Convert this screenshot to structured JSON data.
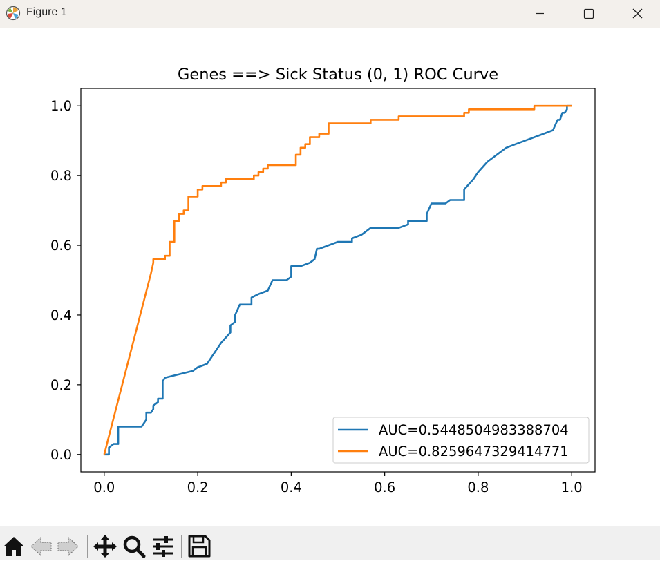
{
  "window": {
    "title": "Figure 1",
    "controls": [
      "minimize-icon",
      "maximize-icon",
      "close-icon"
    ]
  },
  "toolbar": {
    "buttons": [
      "home-icon",
      "back-arrow-icon",
      "forward-arrow-icon",
      "pan-icon",
      "zoom-icon",
      "configure-subplots-icon",
      "save-icon"
    ]
  },
  "chart_data": {
    "type": "line",
    "title": "Genes ==> Sick Status (0, 1) ROC Curve",
    "xlabel": "",
    "ylabel": "",
    "xlim": [
      -0.05,
      1.05
    ],
    "ylim": [
      -0.05,
      1.05
    ],
    "xticks": [
      "0.0",
      "0.2",
      "0.4",
      "0.6",
      "0.8",
      "1.0"
    ],
    "yticks": [
      "0.0",
      "0.2",
      "0.4",
      "0.6",
      "0.8",
      "1.0"
    ],
    "grid": false,
    "legend_position": "lower right",
    "series": [
      {
        "name": "AUC=0.5448504983388704",
        "color": "#1f77b4",
        "x": [
          0.0,
          0.01,
          0.01,
          0.02,
          0.03,
          0.03,
          0.08,
          0.09,
          0.09,
          0.1,
          0.105,
          0.105,
          0.115,
          0.115,
          0.125,
          0.125,
          0.13,
          0.13,
          0.16,
          0.19,
          0.2,
          0.22,
          0.25,
          0.27,
          0.27,
          0.28,
          0.28,
          0.29,
          0.315,
          0.315,
          0.33,
          0.35,
          0.36,
          0.39,
          0.4,
          0.4,
          0.42,
          0.44,
          0.45,
          0.455,
          0.46,
          0.48,
          0.5,
          0.53,
          0.53,
          0.55,
          0.56,
          0.57,
          0.63,
          0.65,
          0.65,
          0.69,
          0.69,
          0.7,
          0.73,
          0.74,
          0.77,
          0.77,
          0.79,
          0.8,
          0.82,
          0.86,
          0.88,
          0.9,
          0.94,
          0.96,
          0.97,
          0.975,
          0.98,
          0.985,
          0.99,
          0.99,
          1.0
        ],
        "y": [
          0.0,
          0.0,
          0.02,
          0.03,
          0.03,
          0.08,
          0.08,
          0.1,
          0.12,
          0.12,
          0.13,
          0.14,
          0.15,
          0.16,
          0.16,
          0.21,
          0.22,
          0.22,
          0.23,
          0.24,
          0.25,
          0.26,
          0.32,
          0.35,
          0.37,
          0.38,
          0.4,
          0.43,
          0.43,
          0.45,
          0.46,
          0.47,
          0.5,
          0.5,
          0.51,
          0.54,
          0.54,
          0.55,
          0.56,
          0.59,
          0.59,
          0.6,
          0.61,
          0.61,
          0.62,
          0.63,
          0.64,
          0.65,
          0.65,
          0.66,
          0.67,
          0.67,
          0.69,
          0.72,
          0.72,
          0.73,
          0.73,
          0.76,
          0.79,
          0.81,
          0.84,
          0.88,
          0.89,
          0.9,
          0.92,
          0.93,
          0.96,
          0.96,
          0.98,
          0.98,
          0.99,
          1.0,
          1.0
        ]
      },
      {
        "name": "AUC=0.8259647329414771",
        "color": "#ff7f0e",
        "x": [
          0.0,
          0.1,
          0.105,
          0.105,
          0.13,
          0.13,
          0.14,
          0.14,
          0.15,
          0.15,
          0.16,
          0.16,
          0.17,
          0.17,
          0.18,
          0.18,
          0.2,
          0.2,
          0.21,
          0.21,
          0.25,
          0.25,
          0.26,
          0.26,
          0.32,
          0.32,
          0.33,
          0.33,
          0.34,
          0.34,
          0.35,
          0.35,
          0.41,
          0.41,
          0.42,
          0.42,
          0.43,
          0.43,
          0.44,
          0.44,
          0.46,
          0.46,
          0.48,
          0.48,
          0.57,
          0.57,
          0.63,
          0.63,
          0.77,
          0.77,
          0.78,
          0.78,
          0.92,
          0.92,
          1.0
        ],
        "y": [
          0.0,
          0.52,
          0.55,
          0.56,
          0.56,
          0.57,
          0.57,
          0.61,
          0.61,
          0.67,
          0.67,
          0.69,
          0.69,
          0.7,
          0.7,
          0.74,
          0.74,
          0.76,
          0.76,
          0.77,
          0.77,
          0.78,
          0.78,
          0.79,
          0.79,
          0.8,
          0.8,
          0.81,
          0.81,
          0.82,
          0.82,
          0.83,
          0.83,
          0.86,
          0.86,
          0.88,
          0.88,
          0.89,
          0.89,
          0.91,
          0.91,
          0.92,
          0.92,
          0.95,
          0.95,
          0.96,
          0.96,
          0.97,
          0.97,
          0.98,
          0.98,
          0.99,
          0.99,
          1.0,
          1.0
        ]
      }
    ]
  }
}
